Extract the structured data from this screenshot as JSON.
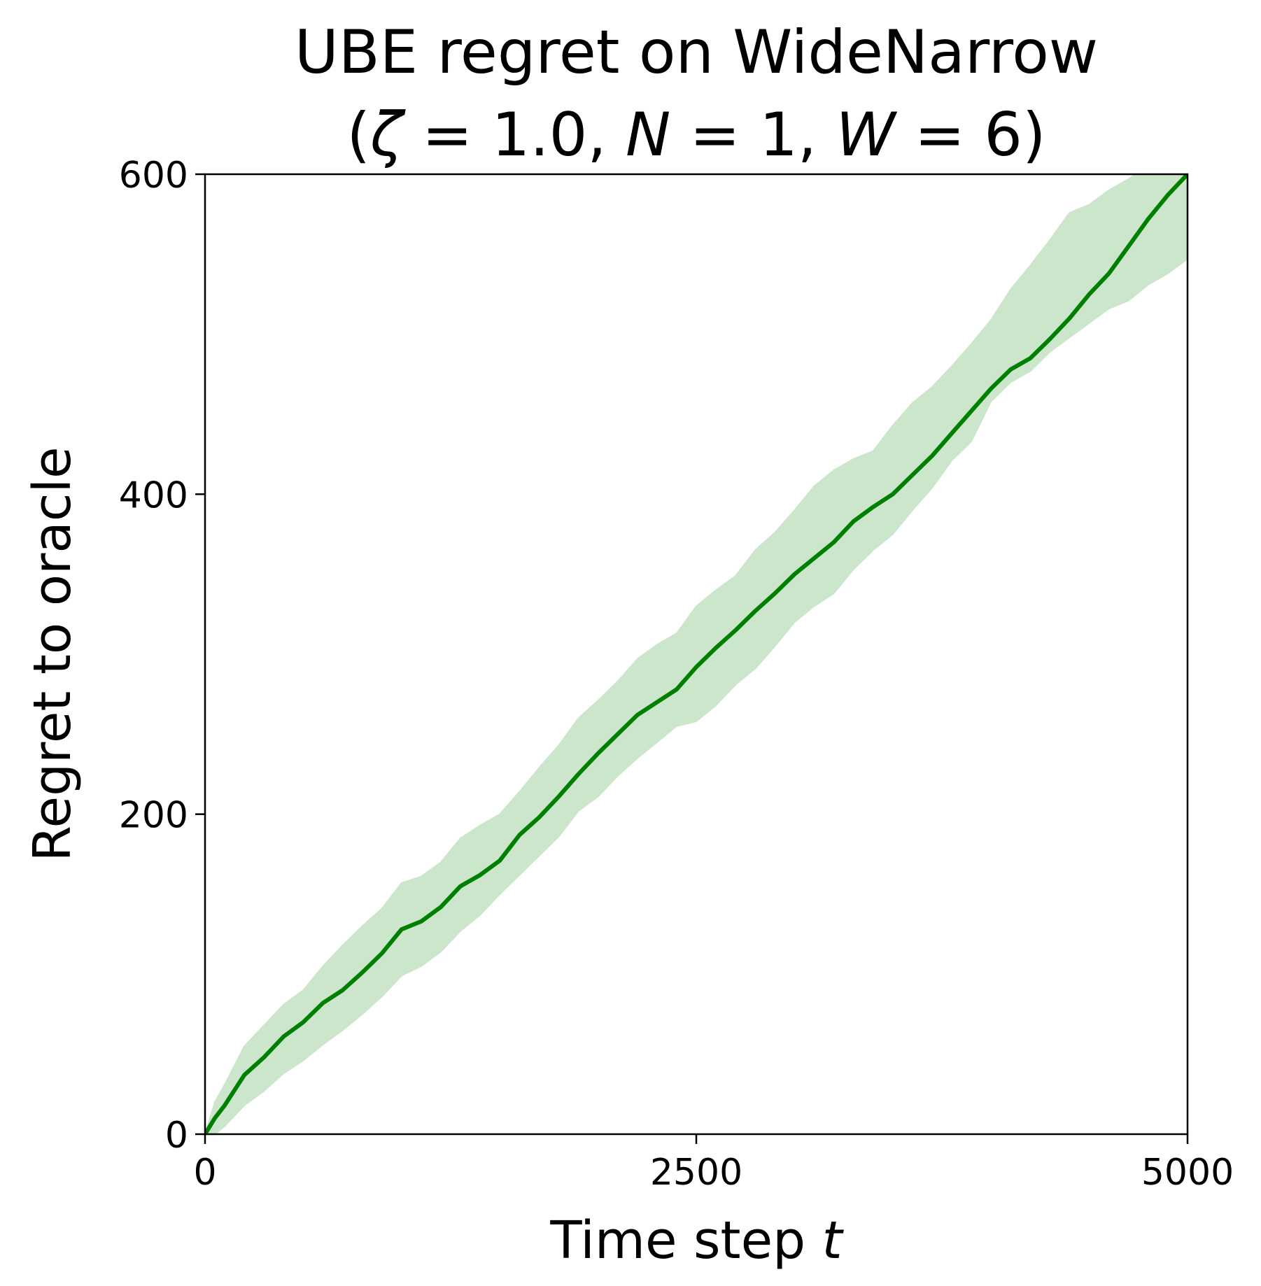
{
  "chart_data": {
    "type": "line",
    "title_line1": "UBE regret on WideNarrow",
    "title_line2": {
      "open": "(",
      "zeta_symbol": "ζ",
      "zeta_eq": " = 1.0, ",
      "n_symbol": "N",
      "n_eq": " = 1, ",
      "w_symbol": "W",
      "w_eq": " = 6)"
    },
    "xlabel": {
      "text": "Time step ",
      "var": "t"
    },
    "ylabel": "Regret to oracle",
    "xlim": [
      0,
      5000
    ],
    "ylim": [
      0,
      600
    ],
    "xticks": [
      {
        "value": 0,
        "label": "0"
      },
      {
        "value": 2500,
        "label": "2500"
      },
      {
        "value": 5000,
        "label": "5000"
      }
    ],
    "yticks": [
      {
        "value": 0,
        "label": "0"
      },
      {
        "value": 200,
        "label": "200"
      },
      {
        "value": 400,
        "label": "400"
      },
      {
        "value": 600,
        "label": "600"
      }
    ],
    "grid": false,
    "colors": {
      "line": "#008000",
      "band": "#cce6cc"
    },
    "series": [
      {
        "x": [
          0,
          50,
          100,
          200,
          300,
          400,
          500,
          600,
          700,
          800,
          900,
          1000,
          1100,
          1200,
          1300,
          1400,
          1500,
          1600,
          1700,
          1800,
          1900,
          2000,
          2100,
          2200,
          2300,
          2400,
          2500,
          2600,
          2700,
          2800,
          2900,
          3000,
          3100,
          3200,
          3300,
          3400,
          3500,
          3600,
          3700,
          3800,
          3900,
          4000,
          4100,
          4200,
          4300,
          4400,
          4500,
          4600,
          4700,
          4800,
          4900,
          5000
        ],
        "y": [
          0,
          10,
          18,
          37,
          48,
          61,
          70,
          82,
          90,
          101,
          113,
          128,
          133,
          142,
          155,
          162,
          171,
          187,
          198,
          211,
          225,
          238,
          250,
          262,
          270,
          278,
          292,
          304,
          315,
          327,
          338,
          350,
          360,
          370,
          383,
          392,
          400,
          412,
          424,
          438,
          452,
          466,
          478,
          485,
          497,
          510,
          525,
          538,
          555,
          572,
          587,
          600
        ],
        "lower": [
          0,
          0,
          5,
          18,
          27,
          38,
          46,
          56,
          65,
          75,
          86,
          99,
          105,
          114,
          127,
          137,
          150,
          162,
          174,
          186,
          202,
          211,
          224,
          235,
          245,
          255,
          258,
          268,
          281,
          291,
          305,
          320,
          330,
          338,
          353,
          365,
          375,
          390,
          404,
          421,
          433,
          458,
          470,
          477,
          489,
          498,
          507,
          516,
          521,
          531,
          538,
          547
        ],
        "upper": [
          0,
          20,
          31,
          55,
          68,
          81,
          90,
          105,
          118,
          130,
          141,
          157,
          161,
          170,
          185,
          193,
          200,
          214,
          229,
          243,
          260,
          271,
          283,
          297,
          306,
          313,
          330,
          340,
          349,
          365,
          376,
          390,
          405,
          415,
          422,
          427,
          443,
          457,
          467,
          480,
          494,
          509,
          528,
          543,
          559,
          576,
          581,
          590,
          597,
          606,
          612,
          620
        ]
      }
    ]
  }
}
